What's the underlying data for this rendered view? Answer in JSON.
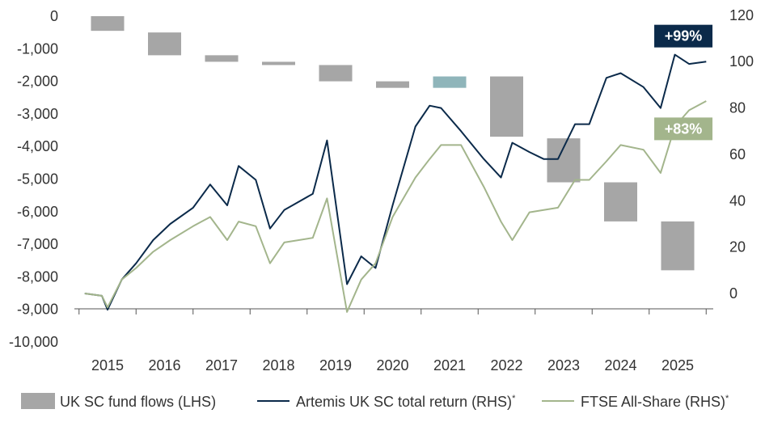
{
  "chart_data": {
    "type": "bar+line",
    "title": "",
    "xlabel": "",
    "ylabel": "",
    "x_categories": [
      "2015",
      "2016",
      "2017",
      "2018",
      "2019",
      "2020",
      "2021",
      "2022",
      "2023",
      "2024",
      "2025"
    ],
    "left_axis": {
      "ticks": [
        "0",
        "-1,000",
        "-2,000",
        "-3,000",
        "-4,000",
        "-5,000",
        "-6,000",
        "-7,000",
        "-8,000",
        "-9,000",
        "-10,000"
      ],
      "range": [
        -10000,
        0
      ]
    },
    "right_axis": {
      "ticks": [
        "0",
        "20",
        "40",
        "60",
        "80",
        "100",
        "120"
      ],
      "range": [
        -20,
        120
      ]
    },
    "grid": false,
    "legend_position": "bottom",
    "bars": {
      "name": "UK SC fund flows (LHS)",
      "color": "#a6a6a6",
      "highlight_color": "#8fb5ba",
      "items": [
        {
          "x": 2015.0,
          "top": 0,
          "bottom": -450
        },
        {
          "x": 2016.0,
          "top": -500,
          "bottom": -1200
        },
        {
          "x": 2017.0,
          "top": -1200,
          "bottom": -1400
        },
        {
          "x": 2018.0,
          "top": -1400,
          "bottom": -1500
        },
        {
          "x": 2019.0,
          "top": -1500,
          "bottom": -2000
        },
        {
          "x": 2020.0,
          "top": -2000,
          "bottom": -2200
        },
        {
          "x": 2021.0,
          "top": -1850,
          "bottom": -2200,
          "highlight": true
        },
        {
          "x": 2022.0,
          "top": -1850,
          "bottom": -3700
        },
        {
          "x": 2023.0,
          "top": -3750,
          "bottom": -5100
        },
        {
          "x": 2024.0,
          "top": -5100,
          "bottom": -6300
        },
        {
          "x": 2025.0,
          "top": -6300,
          "bottom": -7800
        }
      ]
    },
    "series": [
      {
        "name": "Artemis UK SC total return (RHS)",
        "color": "#0b2a4a",
        "points": [
          [
            2014.6,
            0
          ],
          [
            2014.9,
            -1
          ],
          [
            2015.0,
            -7
          ],
          [
            2015.25,
            6
          ],
          [
            2015.5,
            13
          ],
          [
            2015.8,
            23
          ],
          [
            2016.1,
            30
          ],
          [
            2016.5,
            37
          ],
          [
            2016.8,
            47
          ],
          [
            2017.1,
            38
          ],
          [
            2017.3,
            55
          ],
          [
            2017.6,
            49
          ],
          [
            2017.85,
            28
          ],
          [
            2018.1,
            36
          ],
          [
            2018.6,
            43
          ],
          [
            2018.85,
            66
          ],
          [
            2019.2,
            4
          ],
          [
            2019.45,
            16
          ],
          [
            2019.7,
            11
          ],
          [
            2020.0,
            38
          ],
          [
            2020.4,
            72
          ],
          [
            2020.65,
            81
          ],
          [
            2020.85,
            80
          ],
          [
            2021.2,
            70
          ],
          [
            2021.6,
            58
          ],
          [
            2021.9,
            50
          ],
          [
            2022.1,
            65
          ],
          [
            2022.4,
            61
          ],
          [
            2022.65,
            58
          ],
          [
            2022.9,
            58
          ],
          [
            2023.2,
            73
          ],
          [
            2023.45,
            73
          ],
          [
            2023.75,
            93
          ],
          [
            2024.0,
            95
          ],
          [
            2024.4,
            89
          ],
          [
            2024.7,
            80
          ],
          [
            2024.95,
            103
          ],
          [
            2025.2,
            99
          ],
          [
            2025.5,
            100
          ]
        ]
      },
      {
        "name": "FTSE All-Share (RHS)",
        "color": "#a3b58c",
        "points": [
          [
            2014.6,
            0
          ],
          [
            2014.9,
            -1
          ],
          [
            2015.0,
            -6
          ],
          [
            2015.25,
            6
          ],
          [
            2015.5,
            11
          ],
          [
            2015.8,
            18
          ],
          [
            2016.1,
            23
          ],
          [
            2016.5,
            29
          ],
          [
            2016.8,
            33
          ],
          [
            2017.1,
            23
          ],
          [
            2017.3,
            31
          ],
          [
            2017.6,
            29
          ],
          [
            2017.85,
            13
          ],
          [
            2018.1,
            22
          ],
          [
            2018.6,
            24
          ],
          [
            2018.85,
            41
          ],
          [
            2019.2,
            -8
          ],
          [
            2019.45,
            6
          ],
          [
            2019.7,
            13
          ],
          [
            2020.0,
            33
          ],
          [
            2020.4,
            50
          ],
          [
            2020.65,
            58
          ],
          [
            2020.85,
            64
          ],
          [
            2021.2,
            64
          ],
          [
            2021.6,
            46
          ],
          [
            2021.9,
            31
          ],
          [
            2022.1,
            23
          ],
          [
            2022.4,
            35
          ],
          [
            2022.65,
            36
          ],
          [
            2022.9,
            37
          ],
          [
            2023.2,
            49
          ],
          [
            2023.45,
            49
          ],
          [
            2023.75,
            57
          ],
          [
            2024.0,
            64
          ],
          [
            2024.4,
            62
          ],
          [
            2024.7,
            52
          ],
          [
            2024.95,
            72
          ],
          [
            2025.2,
            79
          ],
          [
            2025.5,
            83
          ]
        ]
      }
    ],
    "annotations": [
      {
        "text": "+99%",
        "color": "#0b2a4a",
        "x": 2025.1,
        "y": 111
      },
      {
        "text": "+83%",
        "color": "#a3b58c",
        "x": 2025.1,
        "y": 71
      }
    ]
  },
  "legend": {
    "bars_label": "UK SC fund flows (LHS)",
    "artemis_label": "Artemis UK SC total return (RHS)",
    "artemis_mark": "*",
    "ftse_label": "FTSE All-Share (RHS)",
    "ftse_mark": "*"
  }
}
